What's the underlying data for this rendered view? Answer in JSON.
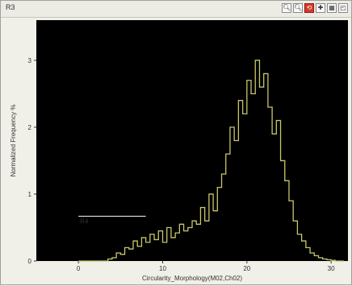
{
  "window": {
    "title": "R3",
    "tools": [
      {
        "icon": "zoom-in-icon",
        "glyph": "🔍︎"
      },
      {
        "icon": "zoom-out-icon",
        "glyph": "🔍︎"
      },
      {
        "icon": "reset-red-icon",
        "glyph": "⟲"
      },
      {
        "icon": "pointer-icon",
        "glyph": "✚"
      },
      {
        "icon": "grid-icon",
        "glyph": "▦"
      },
      {
        "icon": "gate-icon",
        "glyph": "◰"
      }
    ]
  },
  "chart_data": {
    "type": "line",
    "title": "",
    "xlabel": "Circularity_Morphology(M02,Ch02)",
    "ylabel": "Normalized Frequency %",
    "xlim": [
      -5,
      32
    ],
    "ylim": [
      0,
      3.6
    ],
    "xticks": [
      0,
      10,
      20,
      30
    ],
    "yticks": [
      0,
      1,
      2,
      3
    ],
    "colors": {
      "plot_bg": "#000000",
      "line": "#c8c66a",
      "gate": "#ffffff",
      "frame": "#f0efe8"
    },
    "grid": false,
    "gate": {
      "label": "R4",
      "x_start": 0,
      "x_end": 8,
      "y": 0.67
    },
    "series": [
      {
        "x": [
          0,
          0.5,
          1,
          1.5,
          2,
          2.5,
          3,
          3.5,
          4,
          4.5,
          5,
          5.5,
          6,
          6.5,
          7,
          7.5,
          8,
          8.5,
          9,
          9.5,
          10,
          10.5,
          11,
          11.5,
          12,
          12.5,
          13,
          13.5,
          14,
          14.5,
          15,
          15.5,
          16,
          16.5,
          17,
          17.5,
          18,
          18.5,
          19,
          19.5,
          20,
          20.5,
          21,
          21.5,
          22,
          22.5,
          23,
          23.5,
          24,
          24.5,
          25,
          25.5,
          26,
          26.5,
          27,
          27.5,
          28,
          28.5,
          29,
          29.5,
          30,
          30.5,
          31
        ],
        "y": [
          0,
          0,
          0,
          0,
          0,
          0,
          0,
          0.03,
          0.05,
          0.12,
          0.1,
          0.2,
          0.18,
          0.3,
          0.22,
          0.35,
          0.28,
          0.4,
          0.32,
          0.45,
          0.28,
          0.5,
          0.35,
          0.42,
          0.55,
          0.45,
          0.5,
          0.6,
          0.55,
          0.8,
          0.6,
          1.0,
          0.75,
          1.1,
          1.3,
          1.6,
          2.0,
          1.8,
          2.4,
          2.2,
          2.7,
          2.5,
          3.0,
          2.6,
          2.8,
          2.3,
          1.9,
          2.1,
          1.5,
          1.2,
          0.9,
          0.6,
          0.4,
          0.3,
          0.2,
          0.12,
          0.08,
          0.05,
          0.03,
          0.02,
          0.01,
          0,
          0
        ]
      }
    ]
  }
}
